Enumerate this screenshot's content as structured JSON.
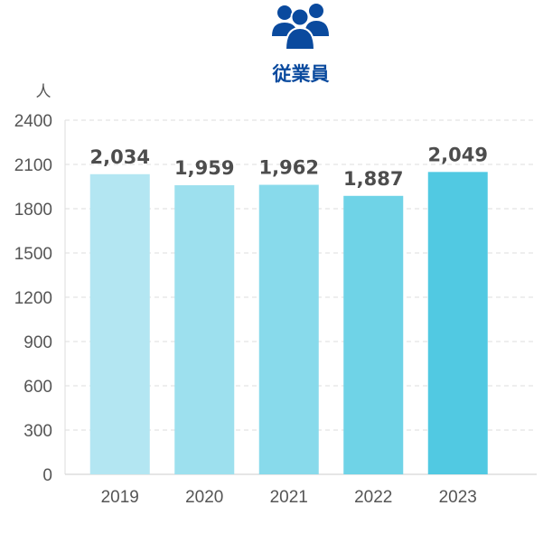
{
  "header": {
    "icon": "people-group-icon",
    "title": "従業員",
    "color": "#0a4a9e"
  },
  "chart_data": {
    "type": "bar",
    "title": "従業員",
    "unit": "人",
    "categories": [
      "2019",
      "2020",
      "2021",
      "2022",
      "2023"
    ],
    "values": [
      2034,
      1959,
      1962,
      1887,
      2049
    ],
    "value_labels": [
      "2,034",
      "1,959",
      "1,962",
      "1,887",
      "2,049"
    ],
    "ylim": [
      0,
      2400
    ],
    "yticks": [
      "0",
      "300",
      "600",
      "900",
      "1200",
      "1500",
      "1800",
      "2100",
      "2400"
    ],
    "grid": true,
    "legend": "none",
    "bar_colors": [
      "#b3e6f2",
      "#9de0ee",
      "#88daeb",
      "#6fd3e7",
      "#51c9e2"
    ]
  }
}
